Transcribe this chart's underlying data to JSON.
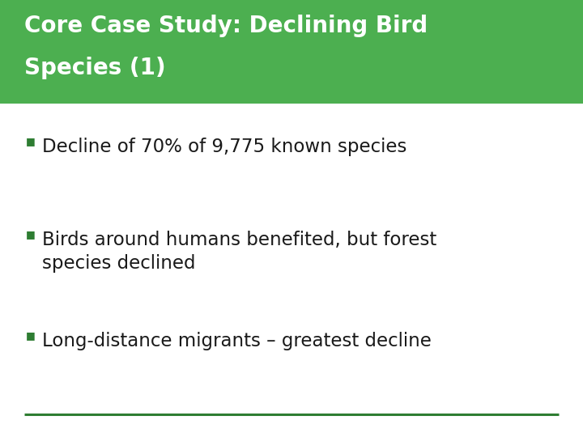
{
  "title_line1": "Core Case Study: Declining Bird",
  "title_line2": "Species (1)",
  "title_bg_color": "#4caf50",
  "title_text_color": "#ffffff",
  "body_bg_color": "#ffffff",
  "bullet_color": "#2e7d32",
  "text_color": "#1a1a1a",
  "line_color": "#2e7d32",
  "bullets": [
    "Decline of 70% of 9,775 known species",
    "Birds around humans benefited, but forest\nspecies declined",
    "Long-distance migrants – greatest decline"
  ],
  "title_font_size": 20,
  "bullet_font_size": 16.5,
  "fig_width": 7.2,
  "fig_height": 5.4,
  "dpi": 100
}
